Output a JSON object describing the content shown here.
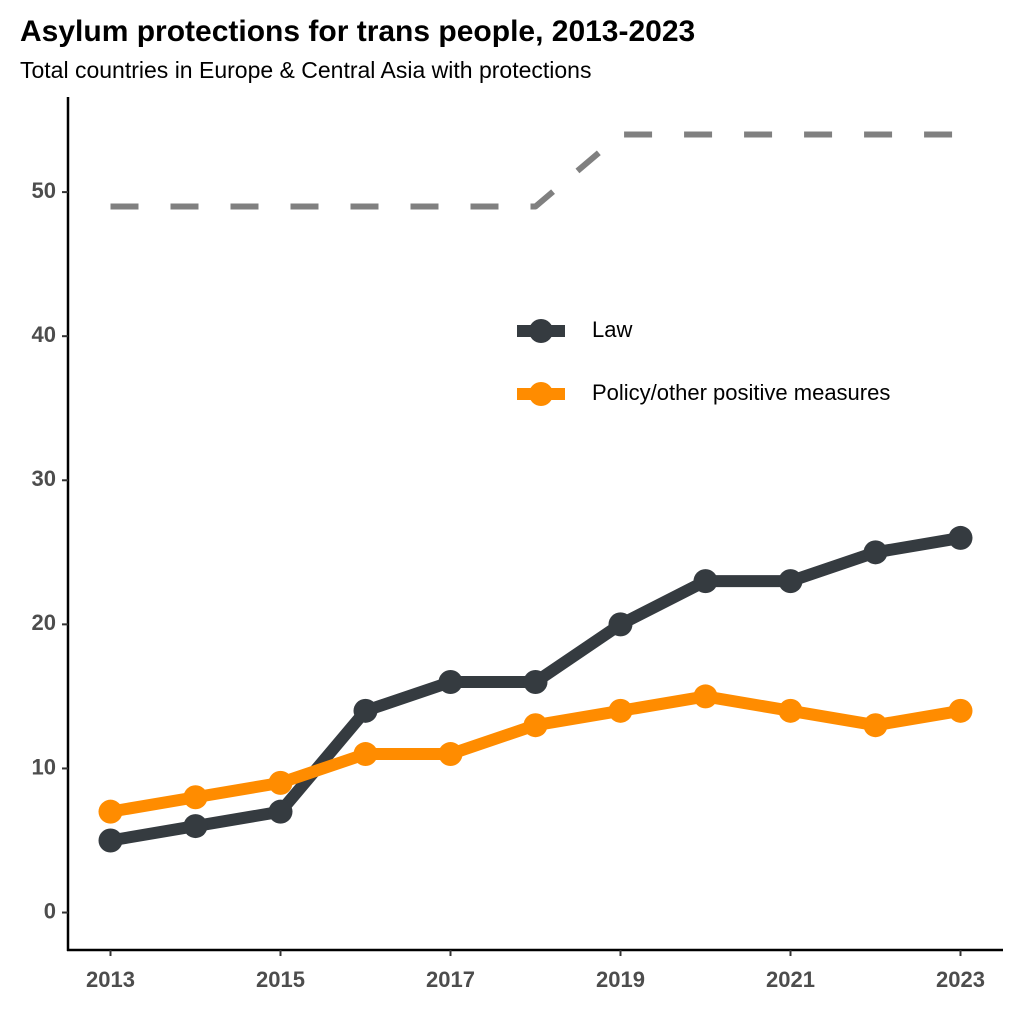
{
  "chart_data": {
    "type": "line",
    "title": "Asylum protections for trans people, 2013-2023",
    "subtitle": "Total countries in Europe & Central Asia with protections",
    "x": [
      2013,
      2014,
      2015,
      2016,
      2017,
      2018,
      2019,
      2020,
      2021,
      2022,
      2023
    ],
    "series": [
      {
        "name": "Law",
        "color": "#353b40",
        "markers": true,
        "dashed": false,
        "values": [
          5,
          6,
          7,
          14,
          16,
          16,
          20,
          23,
          23,
          25,
          26
        ]
      },
      {
        "name": "Policy/other positive measures",
        "color": "#ff8c00",
        "markers": true,
        "dashed": false,
        "values": [
          7,
          8,
          9,
          11,
          11,
          13,
          14,
          15,
          14,
          13,
          14
        ]
      },
      {
        "color": "#808080",
        "markers": false,
        "dashed": true,
        "values": [
          49,
          49,
          49,
          49,
          49,
          49,
          54,
          54,
          54,
          54,
          54
        ]
      }
    ],
    "xlim": [
      2012.5,
      2023.5
    ],
    "xticks": [
      2013,
      2015,
      2017,
      2019,
      2021,
      2023
    ],
    "ylim": [
      -2.6,
      56.6
    ],
    "yticks": [
      0,
      10,
      20,
      30,
      40,
      50
    ],
    "grid": false,
    "legend_position": "right"
  }
}
